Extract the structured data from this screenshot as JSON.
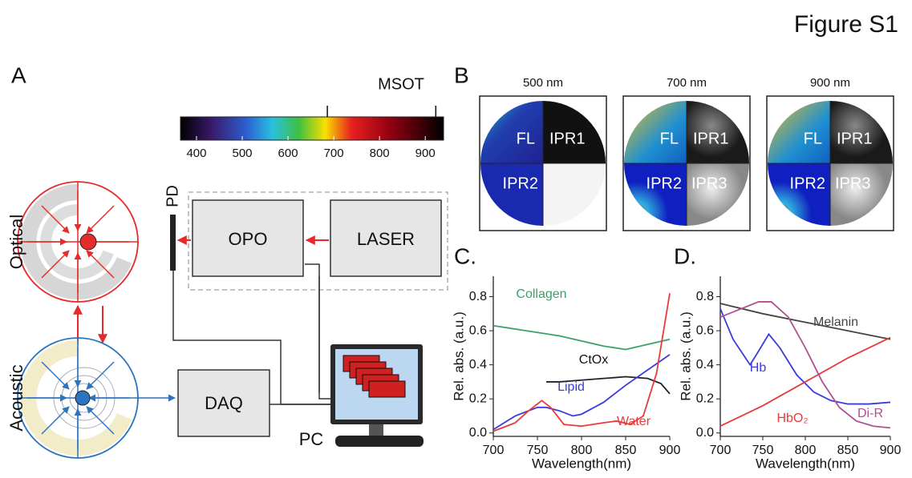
{
  "figure_title": "Figure S1",
  "panel_a": {
    "label": "A",
    "msot": "MSOT",
    "pd": "PD",
    "opo": "OPO",
    "laser": "LASER",
    "daq": "DAQ",
    "pc": "PC",
    "optical": "Optical",
    "acoustic": "Acoustic",
    "colorbar": {
      "range": [
        365,
        940
      ],
      "ticks": [
        400,
        500,
        600,
        700,
        800,
        900
      ],
      "markers": [
        686,
        923
      ]
    }
  },
  "panel_b": {
    "label": "B",
    "images": [
      {
        "title": "500 nm",
        "quadrants": [
          "FL",
          "IPR1",
          "IPR2"
        ]
      },
      {
        "title": "700 nm",
        "quadrants": [
          "FL",
          "IPR1",
          "IPR2",
          "IPR3"
        ]
      },
      {
        "title": "900 nm",
        "quadrants": [
          "FL",
          "IPR1",
          "IPR2",
          "IPR3"
        ]
      }
    ]
  },
  "chart_data": [
    {
      "type": "line",
      "title": "C.",
      "xlabel": "Wavelength(nm)",
      "ylabel": "Rel. abs. (a.u.)",
      "xlim": [
        700,
        900
      ],
      "ylim": [
        -0.02,
        0.92
      ],
      "xticks": [
        700,
        750,
        800,
        850,
        900
      ],
      "yticks": [
        {
          "value": 0,
          "label": "0.0"
        },
        0.2,
        0.4,
        0.6,
        0.8
      ],
      "series": [
        {
          "name": "Collagen",
          "color": "#3aa06a",
          "x": [
            700,
            725,
            750,
            775,
            800,
            825,
            850,
            875,
            900
          ],
          "values": [
            0.63,
            0.61,
            0.59,
            0.57,
            0.54,
            0.51,
            0.49,
            0.52,
            0.55
          ]
        },
        {
          "name": "CtOx",
          "color": "#222222",
          "x": [
            760,
            775,
            800,
            825,
            850,
            875,
            890,
            900
          ],
          "values": [
            0.3,
            0.3,
            0.31,
            0.32,
            0.33,
            0.32,
            0.29,
            0.23
          ]
        },
        {
          "name": "Lipid",
          "color": "#3b3bdc",
          "x": [
            700,
            725,
            750,
            760,
            775,
            790,
            800,
            825,
            850,
            875,
            900
          ],
          "values": [
            0.02,
            0.1,
            0.15,
            0.15,
            0.13,
            0.1,
            0.11,
            0.18,
            0.28,
            0.37,
            0.46
          ]
        },
        {
          "name": "Water",
          "color": "#e83a3a",
          "x": [
            700,
            725,
            740,
            755,
            765,
            780,
            800,
            825,
            840,
            855,
            870,
            885,
            900
          ],
          "values": [
            0.01,
            0.06,
            0.13,
            0.19,
            0.15,
            0.05,
            0.04,
            0.06,
            0.07,
            0.05,
            0.1,
            0.35,
            0.82
          ]
        }
      ]
    },
    {
      "type": "line",
      "title": "D.",
      "xlabel": "Wavelength(nm)",
      "ylabel": "Rel. abs. (a.u.)",
      "xlim": [
        700,
        900
      ],
      "ylim": [
        -0.02,
        0.92
      ],
      "xticks": [
        700,
        750,
        800,
        850,
        900
      ],
      "yticks": [
        {
          "value": 0,
          "label": "0.0"
        },
        0.2,
        0.4,
        0.6,
        0.8
      ],
      "series": [
        {
          "name": "Melanin",
          "color": "#444444",
          "x": [
            700,
            750,
            800,
            850,
            900
          ],
          "values": [
            0.76,
            0.7,
            0.65,
            0.6,
            0.55
          ]
        },
        {
          "name": "Hb",
          "color": "#3b3bdc",
          "x": [
            700,
            715,
            735,
            745,
            757,
            770,
            790,
            810,
            830,
            850,
            875,
            900
          ],
          "values": [
            0.73,
            0.55,
            0.4,
            0.48,
            0.58,
            0.5,
            0.34,
            0.24,
            0.19,
            0.17,
            0.17,
            0.18
          ]
        },
        {
          "name": "HbO₂",
          "color": "#e83a3a",
          "x": [
            700,
            750,
            800,
            850,
            900
          ],
          "values": [
            0.04,
            0.16,
            0.3,
            0.44,
            0.56
          ]
        },
        {
          "name": "Di-R",
          "color": "#b0508f",
          "x": [
            700,
            720,
            745,
            760,
            780,
            800,
            820,
            840,
            860,
            880,
            900
          ],
          "values": [
            0.68,
            0.72,
            0.77,
            0.77,
            0.68,
            0.5,
            0.3,
            0.15,
            0.07,
            0.04,
            0.03
          ]
        }
      ]
    }
  ]
}
